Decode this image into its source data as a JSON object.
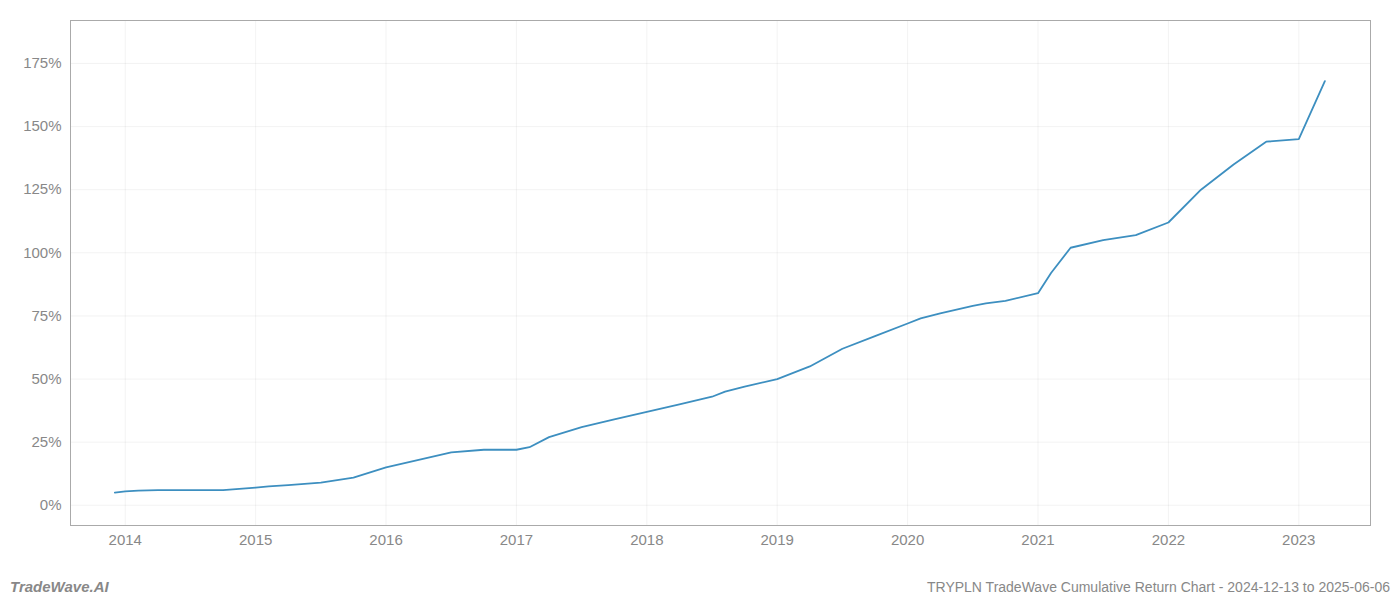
{
  "chart_data": {
    "type": "line",
    "title": "TRYPLN TradeWave Cumulative Return Chart - 2024-12-13 to 2025-06-06",
    "annotations": [
      "TradeWave.AI"
    ],
    "color": "#3d8fc0",
    "x": [
      2013.92,
      2014.0,
      2014.1,
      2014.25,
      2014.5,
      2014.75,
      2015.0,
      2015.1,
      2015.25,
      2015.5,
      2015.75,
      2016.0,
      2016.25,
      2016.5,
      2016.75,
      2017.0,
      2017.1,
      2017.25,
      2017.5,
      2017.75,
      2018.0,
      2018.25,
      2018.5,
      2018.6,
      2018.75,
      2019.0,
      2019.25,
      2019.5,
      2019.75,
      2020.0,
      2020.1,
      2020.25,
      2020.5,
      2020.6,
      2020.75,
      2021.0,
      2021.1,
      2021.25,
      2021.5,
      2021.75,
      2022.0,
      2022.25,
      2022.5,
      2022.75,
      2023.0,
      2023.2
    ],
    "values": [
      5,
      5.5,
      5.8,
      6,
      6,
      6,
      7,
      7.5,
      8,
      9,
      11,
      15,
      18,
      21,
      22,
      22,
      23,
      27,
      31,
      34,
      37,
      40,
      43,
      45,
      47,
      50,
      55,
      62,
      67,
      72,
      74,
      76,
      79,
      80,
      81,
      84,
      92,
      102,
      105,
      107,
      112,
      125,
      135,
      144,
      145,
      168
    ],
    "xlim": [
      2013.58,
      2023.55
    ],
    "xticks": [
      2014,
      2015,
      2016,
      2017,
      2018,
      2019,
      2020,
      2021,
      2022,
      2023
    ],
    "ylim": [
      -8,
      192
    ],
    "yticks": [
      {
        "value": 0,
        "label": "0%"
      },
      {
        "value": 25,
        "label": "25%"
      },
      {
        "value": 50,
        "label": "50%"
      },
      {
        "value": 75,
        "label": "75%"
      },
      {
        "value": 100,
        "label": "100%"
      },
      {
        "value": 125,
        "label": "125%"
      },
      {
        "value": 150,
        "label": "150%"
      },
      {
        "value": 175,
        "label": "175%"
      }
    ],
    "grid": true
  }
}
